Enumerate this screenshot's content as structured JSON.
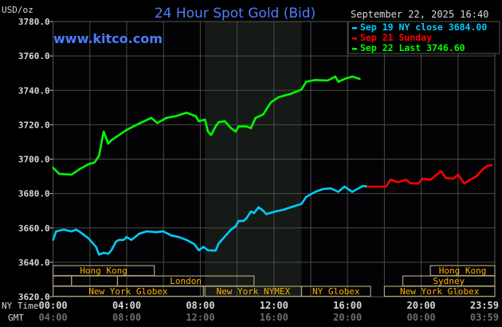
{
  "chart_data": {
    "type": "line",
    "title": "24 Hour Spot Gold (Bid)",
    "ylabel": "USD/oz",
    "watermark": "www.kitco.com",
    "timestamp": "September 22, 2025 16:40",
    "ylim": [
      3620,
      3780
    ],
    "yticks": [
      "3780.0",
      "3760.0",
      "3740.0",
      "3720.0",
      "3700.0",
      "3680.0",
      "3660.0",
      "3640.0",
      "3620.0"
    ],
    "x_axis": {
      "row1_label": "NY Time",
      "row1_ticks": [
        "00:00",
        "04:00",
        "08:00",
        "12:00",
        "16:00",
        "20:00",
        "23:59"
      ],
      "row2_label": "GMT",
      "row2_ticks": [
        "04:00",
        "08:00",
        "12:00",
        "16:00",
        "20:00",
        "00:00",
        "03:59"
      ]
    },
    "grid": true,
    "shaded_period": [
      "08:15",
      "13:30"
    ],
    "legend": {
      "placement": "top-right",
      "items": [
        {
          "label": "Sep 19 NY close 3684.00",
          "color": "#00ccff"
        },
        {
          "label": "Sep 21 Sunday",
          "color": "#ff0000"
        },
        {
          "label": "Sep 22 Last 3746.60",
          "color": "#00ff00"
        }
      ]
    },
    "series": [
      {
        "name": "Sep 19 NY close 3684.00",
        "color": "#00ccff",
        "x": [
          "00:00",
          "00:10",
          "00:35",
          "01:00",
          "01:15",
          "01:25",
          "01:40",
          "01:55",
          "02:05",
          "02:20",
          "02:30",
          "02:45",
          "03:00",
          "03:10",
          "03:25",
          "03:35",
          "03:50",
          "04:00",
          "04:15",
          "04:30",
          "04:40",
          "05:05",
          "05:35",
          "06:00",
          "06:25",
          "06:50",
          "07:15",
          "07:40",
          "07:55",
          "08:10",
          "08:25",
          "08:50",
          "09:00",
          "09:15",
          "09:25",
          "09:40",
          "09:55",
          "10:05",
          "10:20",
          "10:30",
          "10:45",
          "10:55",
          "11:10",
          "11:25",
          "11:35",
          "12:05",
          "12:30",
          "12:55",
          "13:30",
          "13:45",
          "14:15",
          "14:40",
          "15:05",
          "15:30",
          "15:50",
          "16:15",
          "16:50",
          "17:05"
        ],
        "y": [
          3653,
          3658,
          3659,
          3658,
          3659,
          3658,
          3656,
          3654,
          3652,
          3649,
          3644.5,
          3645.5,
          3645,
          3647,
          3652,
          3653,
          3653,
          3654.7,
          3653,
          3655,
          3656.6,
          3658,
          3657.5,
          3658,
          3655.6,
          3654.7,
          3653,
          3650.6,
          3647,
          3649,
          3647,
          3646.8,
          3651,
          3654,
          3656,
          3659,
          3661,
          3664,
          3664,
          3665.4,
          3669.6,
          3668.6,
          3672,
          3670,
          3668,
          3669.6,
          3670.5,
          3672,
          3674,
          3678,
          3681,
          3682.6,
          3683,
          3681,
          3684,
          3681,
          3684.4,
          3684
        ]
      },
      {
        "name": "Sep 21 Sunday",
        "color": "#ff0000",
        "x": [
          "17:05",
          "18:05",
          "18:20",
          "18:45",
          "19:10",
          "19:25",
          "19:50",
          "20:05",
          "20:30",
          "21:05",
          "21:20",
          "21:45",
          "22:00",
          "22:20",
          "22:40",
          "23:00",
          "23:20",
          "23:35",
          "23:50"
        ],
        "y": [
          3684,
          3684,
          3688,
          3686.6,
          3688,
          3686,
          3685.8,
          3688.6,
          3688,
          3693,
          3689,
          3688.6,
          3691,
          3685.8,
          3688,
          3690,
          3694,
          3696,
          3696.5
        ]
      },
      {
        "name": "Sep 22 Last 3746.60",
        "color": "#00ff00",
        "x": [
          "00:00",
          "00:20",
          "01:00",
          "01:25",
          "01:55",
          "02:15",
          "02:30",
          "02:45",
          "03:00",
          "03:10",
          "03:35",
          "04:00",
          "04:40",
          "05:20",
          "05:40",
          "06:10",
          "06:40",
          "07:15",
          "07:45",
          "07:55",
          "08:15",
          "08:25",
          "08:35",
          "08:50",
          "09:00",
          "09:20",
          "09:40",
          "09:55",
          "10:05",
          "10:30",
          "10:45",
          "11:00",
          "11:25",
          "11:50",
          "12:15",
          "12:35",
          "12:55",
          "13:10",
          "13:30",
          "13:45",
          "14:15",
          "14:55",
          "15:20",
          "15:30",
          "15:55",
          "16:15",
          "16:40"
        ],
        "y": [
          3695,
          3691.4,
          3691,
          3694,
          3697,
          3698,
          3702,
          3716,
          3709,
          3711,
          3714,
          3717,
          3720.6,
          3724,
          3721,
          3724,
          3725,
          3727,
          3725,
          3722,
          3723,
          3716,
          3714,
          3719,
          3721.5,
          3722,
          3718,
          3716,
          3719,
          3719,
          3718,
          3724,
          3726,
          3733,
          3736,
          3737,
          3738,
          3739,
          3740.5,
          3745,
          3746,
          3745.7,
          3748,
          3745,
          3747,
          3748,
          3746.6
        ]
      }
    ],
    "sessions": [
      {
        "label": "Hong Kong",
        "row": 1,
        "start": "00:00",
        "end": "05:30"
      },
      {
        "label": "Hong Kong",
        "row": 1,
        "start": "20:30",
        "end": "23:59"
      },
      {
        "label": "",
        "row": 2,
        "start": "00:00",
        "end": "01:00"
      },
      {
        "label": "",
        "row": 2,
        "start": "01:00",
        "end": "03:30"
      },
      {
        "label": "London",
        "row": 2,
        "start": "03:30",
        "end": "10:55"
      },
      {
        "label": "Sydney",
        "row": 2,
        "start": "19:00",
        "end": "23:59"
      },
      {
        "label": "New York Globex",
        "row": 3,
        "start": "00:00",
        "end": "08:10"
      },
      {
        "label": "New York NYMEX",
        "row": 3,
        "start": "08:15",
        "end": "13:30"
      },
      {
        "label": "NY Globex",
        "row": 3,
        "start": "13:30",
        "end": "17:15"
      },
      {
        "label": "New York Globex",
        "row": 3,
        "start": "18:00",
        "end": "23:59"
      }
    ]
  }
}
